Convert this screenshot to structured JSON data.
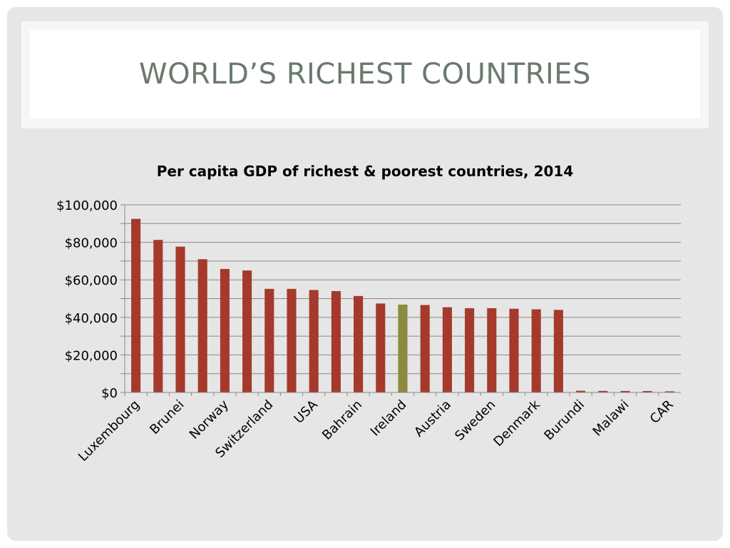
{
  "slide": {
    "title": "WORLD’S RICHEST COUNTRIES"
  },
  "colors": {
    "bar": "#a53a2c",
    "highlight": "#8b8a3e",
    "gridline": "#888888",
    "axis": "#888888",
    "text": "#000000"
  },
  "chart_data": {
    "type": "bar",
    "title": "Per capita GDP of richest & poorest countries, 2014",
    "xlabel": "",
    "ylabel": "",
    "ylim": [
      0,
      100000
    ],
    "y_ticks": [
      {
        "value": 0,
        "label": "$0"
      },
      {
        "value": 20000,
        "label": "$20,000"
      },
      {
        "value": 40000,
        "label": "$40,000"
      },
      {
        "value": 60000,
        "label": "$60,000"
      },
      {
        "value": 80000,
        "label": "$80,000"
      },
      {
        "value": 100000,
        "label": "$100,000"
      }
    ],
    "grid": true,
    "legend": "none",
    "bars": [
      {
        "label": "Luxembourg",
        "value": 92500,
        "show_label": true
      },
      {
        "label": "",
        "value": 81300,
        "show_label": false
      },
      {
        "label": "Brunei",
        "value": 77700,
        "show_label": true
      },
      {
        "label": "",
        "value": 71000,
        "show_label": false
      },
      {
        "label": "Norway",
        "value": 65800,
        "show_label": true
      },
      {
        "label": "",
        "value": 65000,
        "show_label": false
      },
      {
        "label": "Switzerland",
        "value": 55200,
        "show_label": true
      },
      {
        "label": "",
        "value": 55200,
        "show_label": false
      },
      {
        "label": "USA",
        "value": 54600,
        "show_label": true
      },
      {
        "label": "",
        "value": 54000,
        "show_label": false
      },
      {
        "label": "Bahrain",
        "value": 51400,
        "show_label": true
      },
      {
        "label": "",
        "value": 47400,
        "show_label": false
      },
      {
        "label": "Ireland",
        "value": 46800,
        "show_label": true,
        "highlight": true
      },
      {
        "label": "",
        "value": 46600,
        "show_label": false
      },
      {
        "label": "Austria",
        "value": 45400,
        "show_label": true
      },
      {
        "label": "",
        "value": 44900,
        "show_label": false
      },
      {
        "label": "Sweden",
        "value": 44900,
        "show_label": true
      },
      {
        "label": "",
        "value": 44600,
        "show_label": false
      },
      {
        "label": "Denmark",
        "value": 44300,
        "show_label": true
      },
      {
        "label": "",
        "value": 44000,
        "show_label": false
      },
      {
        "label": "Burundi",
        "value": 900,
        "show_label": true
      },
      {
        "label": "",
        "value": 800,
        "show_label": false
      },
      {
        "label": "Malawi",
        "value": 780,
        "show_label": true
      },
      {
        "label": "",
        "value": 750,
        "show_label": false
      },
      {
        "label": "CAR",
        "value": 600,
        "show_label": true
      }
    ]
  }
}
